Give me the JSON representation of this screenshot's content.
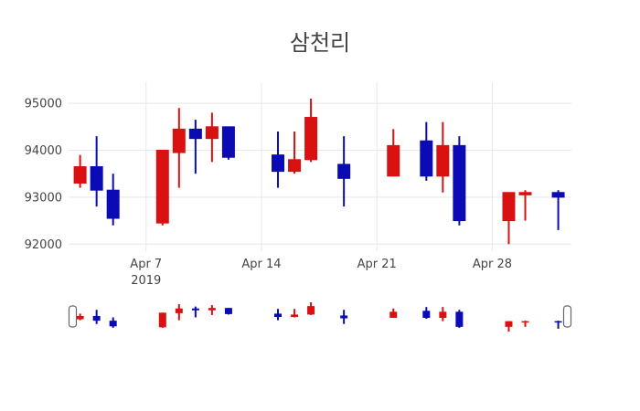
{
  "chart_data": {
    "type": "candlestick",
    "title": "삼천리",
    "xlabel": "",
    "ylabel": "",
    "grid": true,
    "rangeslider": true,
    "increasing_color": "#d91111",
    "decreasing_color": "#0b0bb5",
    "grid_color": "#e8e8e8",
    "text_color": "#444444",
    "background_color": "#ffffff",
    "ylim": [
      91850,
      95450
    ],
    "xlim_days": [
      2.3,
      32.8
    ],
    "y_ticks": [
      {
        "value": 92000,
        "label": "92000"
      },
      {
        "value": 93000,
        "label": "93000"
      },
      {
        "value": 94000,
        "label": "94000"
      },
      {
        "value": 95000,
        "label": "95000"
      }
    ],
    "x_ticks": [
      {
        "day": 7,
        "label": "Apr 7",
        "sublabel": "2019"
      },
      {
        "day": 14,
        "label": "Apr 14",
        "sublabel": ""
      },
      {
        "day": 21,
        "label": "Apr 21",
        "sublabel": ""
      },
      {
        "day": 28,
        "label": "Apr 28",
        "sublabel": ""
      }
    ],
    "candles": [
      {
        "date": "Apr 3",
        "day": 3,
        "open": 93300,
        "high": 93900,
        "low": 93200,
        "close": 93650
      },
      {
        "date": "Apr 4",
        "day": 4,
        "open": 93650,
        "high": 94300,
        "low": 92800,
        "close": 93150
      },
      {
        "date": "Apr 5",
        "day": 5,
        "open": 93150,
        "high": 93500,
        "low": 92400,
        "close": 92550
      },
      {
        "date": "Apr 8",
        "day": 8,
        "open": 92450,
        "high": 94000,
        "low": 92400,
        "close": 94000
      },
      {
        "date": "Apr 9",
        "day": 9,
        "open": 93950,
        "high": 94900,
        "low": 93200,
        "close": 94450
      },
      {
        "date": "Apr 10",
        "day": 10,
        "open": 94450,
        "high": 94650,
        "low": 93500,
        "close": 94250
      },
      {
        "date": "Apr 11",
        "day": 11,
        "open": 94250,
        "high": 94800,
        "low": 93750,
        "close": 94500
      },
      {
        "date": "Apr 12",
        "day": 12,
        "open": 94500,
        "high": 94500,
        "low": 93800,
        "close": 93850
      },
      {
        "date": "Apr 15",
        "day": 15,
        "open": 93900,
        "high": 94400,
        "low": 93200,
        "close": 93550
      },
      {
        "date": "Apr 16",
        "day": 16,
        "open": 93550,
        "high": 94400,
        "low": 93500,
        "close": 93800
      },
      {
        "date": "Apr 17",
        "day": 17,
        "open": 93800,
        "high": 95100,
        "low": 93750,
        "close": 94700
      },
      {
        "date": "Apr 19",
        "day": 19,
        "open": 93700,
        "high": 94300,
        "low": 92800,
        "close": 93400
      },
      {
        "date": "Apr 22",
        "day": 22,
        "open": 93450,
        "high": 94450,
        "low": 93450,
        "close": 94100
      },
      {
        "date": "Apr 24",
        "day": 24,
        "open": 94200,
        "high": 94600,
        "low": 93350,
        "close": 93450
      },
      {
        "date": "Apr 25",
        "day": 25,
        "open": 93450,
        "high": 94600,
        "low": 93100,
        "close": 94100
      },
      {
        "date": "Apr 26",
        "day": 26,
        "open": 94100,
        "high": 94300,
        "low": 92400,
        "close": 92500
      },
      {
        "date": "Apr 29",
        "day": 29,
        "open": 92500,
        "high": 93100,
        "low": 92000,
        "close": 93100
      },
      {
        "date": "Apr 30",
        "day": 30,
        "open": 93050,
        "high": 93150,
        "low": 92500,
        "close": 93100
      },
      {
        "date": "May 2",
        "day": 32,
        "open": 93100,
        "high": 93150,
        "low": 92300,
        "close": 93000
      }
    ]
  }
}
